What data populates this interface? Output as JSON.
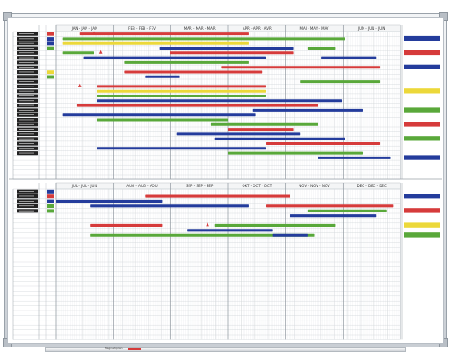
{
  "board": {
    "frame_color": "#b5bcc4",
    "grid_color": "#c9ced3",
    "minor_grid_color": "#e7eaed",
    "top_section": {
      "months": [
        "JAN - JAN - JAN",
        "FEB - FEB - FEV",
        "MAR - MAR - MAR",
        "APR - APR - AVR",
        "MAI - MAY - MAY",
        "JUN - JUN - JUIN"
      ],
      "label_rows": 26
    },
    "bottom_section": {
      "months": [
        "JUL - JUL - JUIL",
        "AUG - AUG - AOU",
        "SEP - SEP - SEP",
        "OKT - OCT - OCT",
        "NOV - NOV - NOV",
        "DEC - DEC - DEC"
      ],
      "label_rows": 5
    },
    "tray_text": "Magnetoplan",
    "colors": {
      "red": "#d63b3b",
      "blue": "#243c9c",
      "green": "#59a83a",
      "yellow": "#ecd83a",
      "label": "#222222"
    }
  },
  "top_bars": [
    {
      "row": 0,
      "start": 0.07,
      "end": 0.56,
      "color": "red"
    },
    {
      "row": 1,
      "start": 0.02,
      "end": 0.84,
      "color": "green"
    },
    {
      "row": 2,
      "start": 0.02,
      "end": 0.56,
      "color": "yellow"
    },
    {
      "row": 3,
      "start": 0.3,
      "end": 0.69,
      "color": "blue"
    },
    {
      "row": 3,
      "start": 0.73,
      "end": 0.81,
      "color": "green"
    },
    {
      "row": 4,
      "start": 0.02,
      "end": 0.11,
      "color": "green"
    },
    {
      "row": 4,
      "start": 0.33,
      "end": 0.69,
      "color": "red"
    },
    {
      "row": 5,
      "start": 0.08,
      "end": 0.61,
      "color": "blue"
    },
    {
      "row": 5,
      "start": 0.77,
      "end": 0.93,
      "color": "blue"
    },
    {
      "row": 6,
      "start": 0.2,
      "end": 0.56,
      "color": "green"
    },
    {
      "row": 7,
      "start": 0.48,
      "end": 0.94,
      "color": "red"
    },
    {
      "row": 8,
      "start": 0.2,
      "end": 0.6,
      "color": "red"
    },
    {
      "row": 9,
      "start": 0.26,
      "end": 0.36,
      "color": "blue"
    },
    {
      "row": 10,
      "start": 0.71,
      "end": 0.94,
      "color": "green"
    },
    {
      "row": 11,
      "start": 0.12,
      "end": 0.61,
      "color": "red"
    },
    {
      "row": 12,
      "start": 0.12,
      "end": 0.61,
      "color": "yellow"
    },
    {
      "row": 13,
      "start": 0.12,
      "end": 0.61,
      "color": "green"
    },
    {
      "row": 14,
      "start": 0.12,
      "end": 0.83,
      "color": "blue"
    },
    {
      "row": 15,
      "start": 0.06,
      "end": 0.76,
      "color": "red"
    },
    {
      "row": 16,
      "start": 0.57,
      "end": 0.89,
      "color": "blue"
    },
    {
      "row": 17,
      "start": 0.02,
      "end": 0.58,
      "color": "blue"
    },
    {
      "row": 18,
      "start": 0.12,
      "end": 0.5,
      "color": "green"
    },
    {
      "row": 19,
      "start": 0.45,
      "end": 0.76,
      "color": "green"
    },
    {
      "row": 20,
      "start": 0.5,
      "end": 0.69,
      "color": "red"
    },
    {
      "row": 21,
      "start": 0.35,
      "end": 0.71,
      "color": "blue"
    },
    {
      "row": 22,
      "start": 0.46,
      "end": 0.84,
      "color": "blue"
    },
    {
      "row": 23,
      "start": 0.61,
      "end": 0.94,
      "color": "red"
    },
    {
      "row": 24,
      "start": 0.12,
      "end": 0.61,
      "color": "blue"
    },
    {
      "row": 25,
      "start": 0.5,
      "end": 0.89,
      "color": "green"
    },
    {
      "row": 26,
      "start": 0.76,
      "end": 0.97,
      "color": "blue"
    }
  ],
  "bottom_bars": [
    {
      "row": 1,
      "start": 0.26,
      "end": 0.68,
      "color": "red"
    },
    {
      "row": 2,
      "start": 0.0,
      "end": 0.31,
      "color": "blue"
    },
    {
      "row": 3,
      "start": 0.1,
      "end": 0.56,
      "color": "blue"
    },
    {
      "row": 3,
      "start": 0.61,
      "end": 0.98,
      "color": "red"
    },
    {
      "row": 4,
      "start": 0.73,
      "end": 0.96,
      "color": "green"
    },
    {
      "row": 5,
      "start": 0.68,
      "end": 0.93,
      "color": "blue"
    },
    {
      "row": 7,
      "start": 0.1,
      "end": 0.31,
      "color": "red"
    },
    {
      "row": 7,
      "start": 0.46,
      "end": 0.81,
      "color": "green"
    },
    {
      "row": 8,
      "start": 0.38,
      "end": 0.63,
      "color": "blue"
    },
    {
      "row": 9,
      "start": 0.1,
      "end": 0.75,
      "color": "green"
    },
    {
      "row": 9,
      "start": 0.63,
      "end": 0.73,
      "color": "blue"
    }
  ],
  "top_markers": [
    {
      "row": 0,
      "pos": 0.11,
      "color": "red"
    },
    {
      "row": 4,
      "pos": 0.13,
      "color": "red"
    },
    {
      "row": 11,
      "pos": 0.07,
      "color": "red"
    }
  ],
  "bottom_markers": [
    {
      "row": 7,
      "pos": 0.44,
      "color": "red"
    }
  ],
  "top_status": [
    "red",
    "blue",
    "blue",
    "green",
    "",
    "",
    "",
    "",
    "yellow",
    "green"
  ],
  "bottom_status": [
    "blue",
    "red",
    "blue",
    "green",
    "green"
  ],
  "top_right_tags": [
    {
      "row": 1,
      "color": "blue"
    },
    {
      "row": 4,
      "color": "red"
    },
    {
      "row": 7,
      "color": "blue"
    },
    {
      "row": 12,
      "color": "yellow"
    },
    {
      "row": 16,
      "color": "green"
    },
    {
      "row": 19,
      "color": "red"
    },
    {
      "row": 22,
      "color": "green"
    },
    {
      "row": 26,
      "color": "blue"
    }
  ],
  "bottom_right_tags": [
    {
      "row": 1,
      "color": "blue"
    },
    {
      "row": 4,
      "color": "red"
    },
    {
      "row": 7,
      "color": "yellow"
    },
    {
      "row": 9,
      "color": "green"
    }
  ]
}
